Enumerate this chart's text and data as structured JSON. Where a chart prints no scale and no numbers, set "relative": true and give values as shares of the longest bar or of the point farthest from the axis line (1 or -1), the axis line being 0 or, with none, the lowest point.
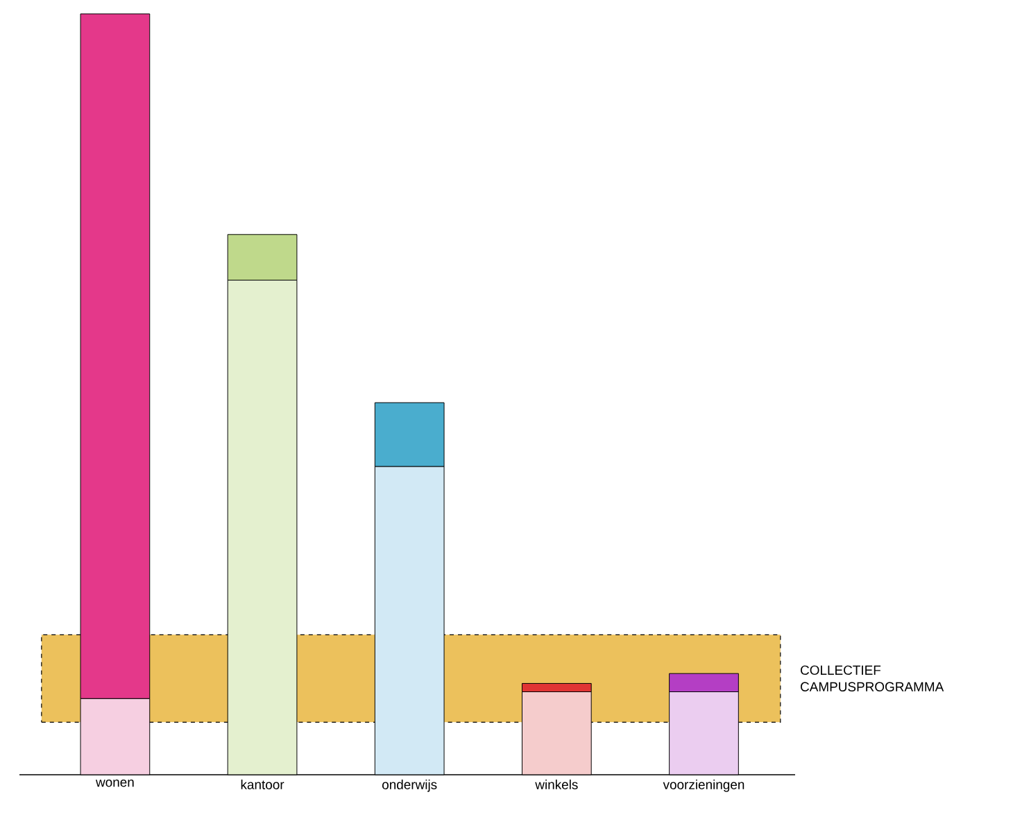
{
  "chart_data": {
    "type": "bar",
    "stacked": true,
    "relative": true,
    "categories": [
      "wonen",
      "kantoor",
      "onderwijs",
      "winkels",
      "voorzieningen"
    ],
    "series": [
      {
        "colors": [
          "#f6cfe1",
          "#e4f0cf",
          "#d2e9f5",
          "#f5cccc",
          "#ebcdf0"
        ],
        "values": [
          0.1,
          0.65,
          0.405,
          0.109,
          0.109
        ]
      },
      {
        "colors": [
          "#e4388a",
          "#bfd98b",
          "#4aadce",
          "#e03434",
          "#b43ec4"
        ],
        "values": [
          0.9,
          0.06,
          0.084,
          0.011,
          0.024
        ]
      }
    ],
    "bands": [
      {
        "axis": "y",
        "from": 0.069,
        "to": 0.184,
        "label": "COLLECTIEF CAMPUSPROGRAMMA",
        "color": "#ecc15c"
      }
    ]
  }
}
